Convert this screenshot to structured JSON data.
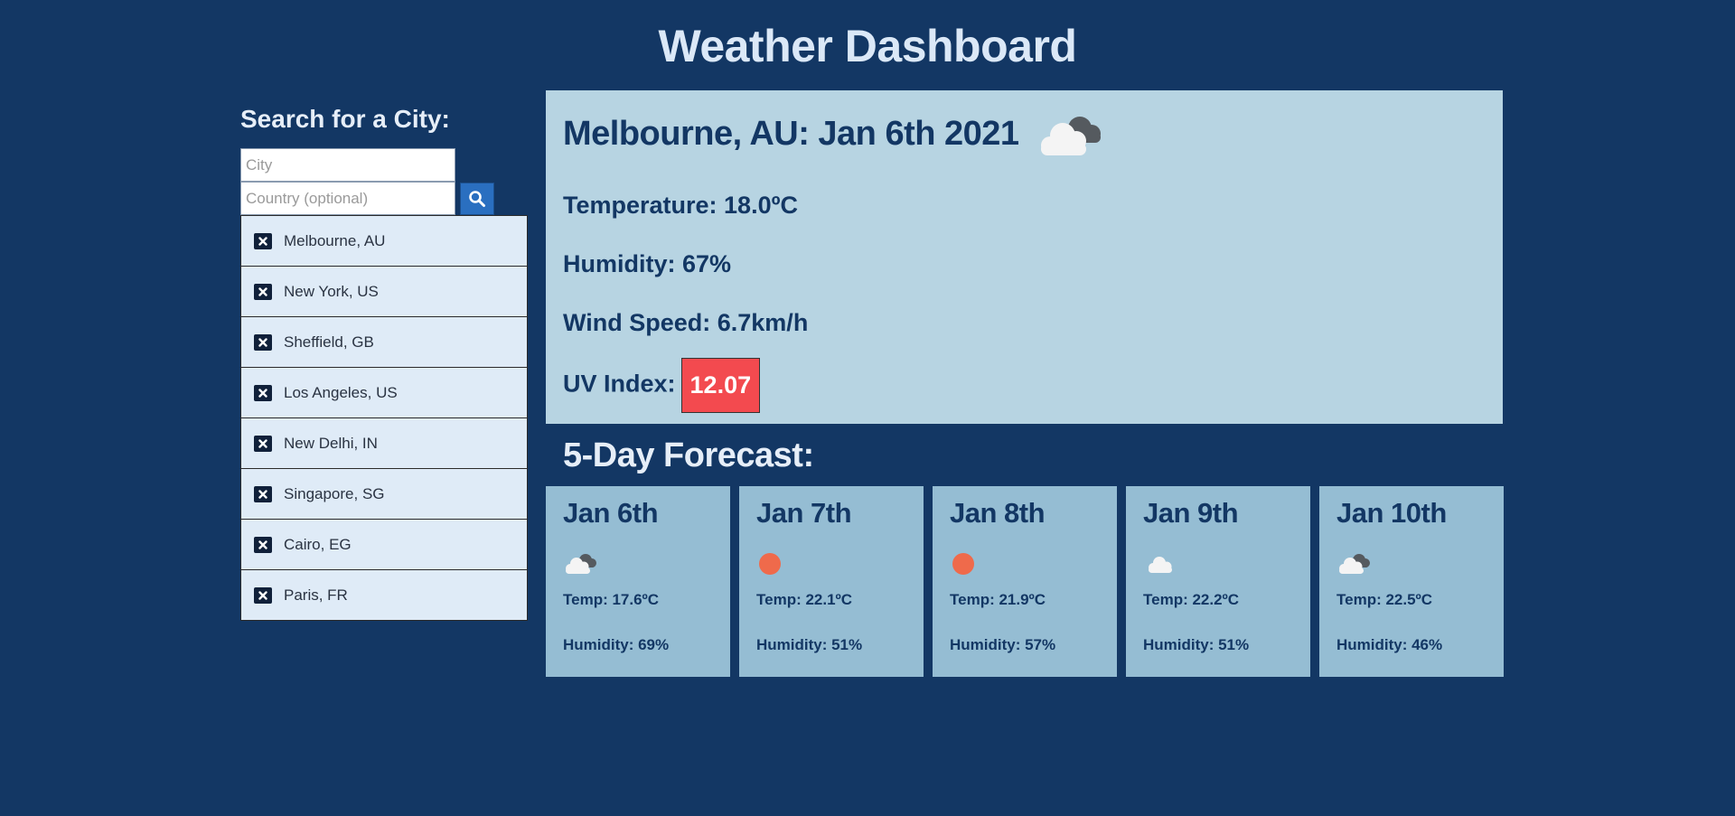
{
  "header": {
    "title": "Weather Dashboard"
  },
  "search": {
    "heading": "Search for a City:",
    "city_placeholder": "City",
    "country_placeholder": "Country (optional)",
    "search_icon": "search-icon"
  },
  "saved_cities": [
    "Melbourne, AU",
    "New York, US",
    "Sheffield, GB",
    "Los Angeles, US",
    "New Delhi, IN",
    "Singapore, SG",
    "Cairo, EG",
    "Paris, FR"
  ],
  "current": {
    "title": "Melbourne, AU: Jan 6th 2021",
    "icon": "cloudy-icon",
    "temperature": "Temperature: 18.0ºC",
    "humidity": "Humidity: 67%",
    "wind": "Wind Speed: 6.7km/h",
    "uv_label": "UV Index:",
    "uv_value": "12.07",
    "uv_color": "#f34a4f"
  },
  "forecast": {
    "heading": "5-Day Forecast:",
    "days": [
      {
        "date": "Jan 6th",
        "icon": "cloudy-icon",
        "temp": "Temp: 17.6ºC",
        "humidity": "Humidity: 69%"
      },
      {
        "date": "Jan 7th",
        "icon": "sun-icon",
        "temp": "Temp: 22.1ºC",
        "humidity": "Humidity: 51%"
      },
      {
        "date": "Jan 8th",
        "icon": "sun-icon",
        "temp": "Temp: 21.9ºC",
        "humidity": "Humidity: 57%"
      },
      {
        "date": "Jan 9th",
        "icon": "cloud-icon",
        "temp": "Temp: 22.2ºC",
        "humidity": "Humidity: 51%"
      },
      {
        "date": "Jan 10th",
        "icon": "cloudy-icon",
        "temp": "Temp: 22.5ºC",
        "humidity": "Humidity: 46%"
      }
    ]
  },
  "colors": {
    "background": "#133764",
    "current_card": "#b7d4e2",
    "forecast_card": "#95bdd3",
    "city_item": "#dfebf7",
    "search_button": "#2a6fc0",
    "sun": "#ef6a4b"
  }
}
